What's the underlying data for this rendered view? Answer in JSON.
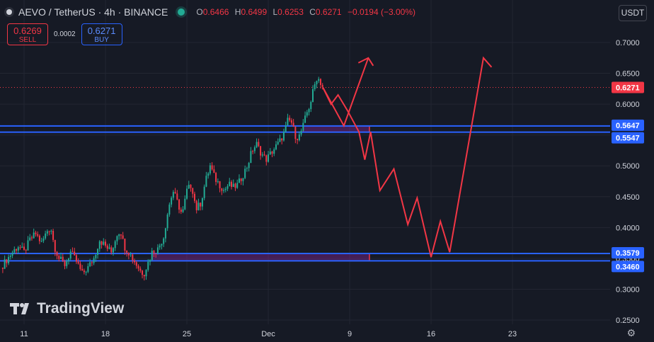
{
  "header": {
    "title": "AEVO / TetherUS · 4h · BINANCE",
    "ohlc": [
      {
        "key": "O",
        "value": "0.6466"
      },
      {
        "key": "H",
        "value": "0.6499"
      },
      {
        "key": "L",
        "value": "0.6253"
      },
      {
        "key": "C",
        "value": "0.6271"
      }
    ],
    "change": "−0.0194 (−3.00%)"
  },
  "trade": {
    "sell_price": "0.6269",
    "sell_label": "SELL",
    "spread": "0.0002",
    "buy_price": "0.6271",
    "buy_label": "BUY"
  },
  "currency_button": "USDT",
  "logo_text": "TradingView",
  "colors": {
    "background": "#161a25",
    "up": "#22ab94",
    "down": "#f23645",
    "level_line": "#2962ff",
    "projection": "#f23645"
  },
  "chart_data": {
    "type": "candlestick",
    "timeframe": "4h",
    "ylim": [
      0.25,
      0.72
    ],
    "y_ticks": [
      "0.7000",
      "0.6500",
      "0.6000",
      "0.5500",
      "0.5000",
      "0.4500",
      "0.4000",
      "0.3500",
      "0.3000",
      "0.2500"
    ],
    "x_ticks": [
      "11",
      "18",
      "25",
      "Dec",
      "9",
      "16",
      "23"
    ],
    "last_price": "0.6271",
    "levels": [
      "0.5647",
      "0.5547",
      "0.3579",
      "0.3460"
    ],
    "price_path": [
      [
        9.0,
        0.335
      ],
      [
        10.0,
        0.36
      ],
      [
        10.5,
        0.37
      ],
      [
        11.0,
        0.36
      ],
      [
        11.5,
        0.38
      ],
      [
        12.0,
        0.39
      ],
      [
        12.5,
        0.375
      ],
      [
        13.0,
        0.395
      ],
      [
        13.3,
        0.4
      ],
      [
        13.6,
        0.37
      ],
      [
        14.0,
        0.35
      ],
      [
        14.5,
        0.34
      ],
      [
        15.0,
        0.36
      ],
      [
        15.5,
        0.345
      ],
      [
        16.0,
        0.325
      ],
      [
        16.5,
        0.335
      ],
      [
        17.0,
        0.35
      ],
      [
        17.5,
        0.38
      ],
      [
        18.0,
        0.37
      ],
      [
        18.5,
        0.36
      ],
      [
        19.0,
        0.39
      ],
      [
        19.3,
        0.395
      ],
      [
        19.6,
        0.37
      ],
      [
        20.0,
        0.36
      ],
      [
        20.5,
        0.345
      ],
      [
        21.0,
        0.33
      ],
      [
        21.3,
        0.325
      ],
      [
        21.6,
        0.34
      ],
      [
        22.0,
        0.36
      ],
      [
        22.5,
        0.365
      ],
      [
        23.0,
        0.385
      ],
      [
        23.4,
        0.43
      ],
      [
        23.8,
        0.46
      ],
      [
        24.2,
        0.44
      ],
      [
        24.6,
        0.42
      ],
      [
        25.0,
        0.46
      ],
      [
        25.4,
        0.47
      ],
      [
        25.8,
        0.43
      ],
      [
        26.2,
        0.44
      ],
      [
        26.6,
        0.475
      ],
      [
        27.0,
        0.5
      ],
      [
        27.4,
        0.48
      ],
      [
        27.8,
        0.47
      ],
      [
        28.2,
        0.46
      ],
      [
        28.6,
        0.47
      ],
      [
        29.0,
        0.465
      ],
      [
        29.4,
        0.47
      ],
      [
        29.8,
        0.485
      ],
      [
        30.2,
        0.5
      ],
      [
        30.6,
        0.525
      ],
      [
        31.0,
        0.535
      ],
      [
        31.4,
        0.52
      ],
      [
        31.8,
        0.51
      ],
      [
        32.2,
        0.52
      ],
      [
        32.6,
        0.53
      ],
      [
        33.0,
        0.54
      ],
      [
        33.4,
        0.555
      ],
      [
        33.7,
        0.575
      ],
      [
        34.0,
        0.57
      ],
      [
        34.3,
        0.55
      ],
      [
        34.6,
        0.545
      ],
      [
        35.0,
        0.565
      ],
      [
        35.3,
        0.585
      ],
      [
        35.6,
        0.6
      ],
      [
        35.9,
        0.625
      ],
      [
        36.2,
        0.645
      ],
      [
        36.5,
        0.635
      ],
      [
        36.7,
        0.627
      ]
    ],
    "projections": [
      {
        "name": "bullish",
        "points": [
          [
            36.7,
            0.627
          ],
          [
            38.5,
            0.565
          ],
          [
            40.6,
            0.675
          ]
        ]
      },
      {
        "name": "bearish",
        "points": [
          [
            36.7,
            0.627
          ],
          [
            37.4,
            0.6
          ],
          [
            38.0,
            0.615
          ],
          [
            38.8,
            0.59
          ],
          [
            39.8,
            0.555
          ],
          [
            40.3,
            0.51
          ],
          [
            40.8,
            0.555
          ],
          [
            41.6,
            0.46
          ],
          [
            42.8,
            0.495
          ],
          [
            44.0,
            0.405
          ],
          [
            44.8,
            0.448
          ],
          [
            46.0,
            0.352
          ],
          [
            46.8,
            0.41
          ],
          [
            47.6,
            0.36
          ],
          [
            50.5,
            0.675
          ],
          [
            51.2,
            0.66
          ]
        ]
      }
    ]
  }
}
